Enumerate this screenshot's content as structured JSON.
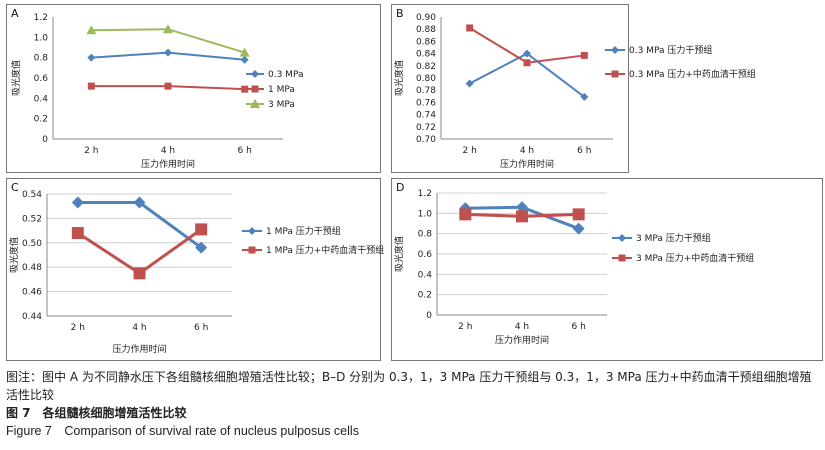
{
  "colors": {
    "blue": "#4f81bd",
    "red": "#c0504d",
    "green": "#9bbb59"
  },
  "chart_data": [
    {
      "letter": "A",
      "type": "line",
      "categories": [
        "2 h",
        "4 h",
        "6 h"
      ],
      "xlabel": "压力作用时间",
      "ylabel": "吸光度值",
      "ylim": [
        0,
        1.2
      ],
      "yticks": [
        "0",
        "0.2",
        "0.4",
        "0.6",
        "0.8",
        "1.0",
        "1.2"
      ],
      "grid": false,
      "legend_position": "right",
      "series": [
        {
          "name": "0.3 MPa",
          "values": [
            0.8,
            0.85,
            0.78
          ],
          "color": "#4f81bd",
          "marker": "diamond"
        },
        {
          "name": "1 MPa",
          "values": [
            0.52,
            0.52,
            0.49
          ],
          "color": "#c0504d",
          "marker": "square"
        },
        {
          "name": "3 MPa",
          "values": [
            1.07,
            1.08,
            0.85
          ],
          "color": "#9bbb59",
          "marker": "triangle"
        }
      ]
    },
    {
      "letter": "B",
      "type": "line",
      "categories": [
        "2 h",
        "4 h",
        "6 h"
      ],
      "xlabel": "压力作用时间",
      "ylabel": "吸光度值",
      "ylim": [
        0.7,
        0.9
      ],
      "yticks": [
        "0.70",
        "0.72",
        "0.74",
        "0.76",
        "0.78",
        "0.80",
        "0.82",
        "0.84",
        "0.86",
        "0.88",
        "0.90"
      ],
      "grid": false,
      "legend_position": "right",
      "series": [
        {
          "name": "0.3 MPa 压力干预组",
          "values": [
            0.791,
            0.84,
            0.769
          ],
          "color": "#4f81bd",
          "marker": "diamond"
        },
        {
          "name": "0.3 MPa 压力+中药血清干预组",
          "values": [
            0.882,
            0.825,
            0.837
          ],
          "color": "#c0504d",
          "marker": "square"
        }
      ]
    },
    {
      "letter": "C",
      "type": "line",
      "categories": [
        "2 h",
        "4 h",
        "6 h"
      ],
      "xlabel": "压力作用时间",
      "ylabel": "吸光度值",
      "ylim": [
        0.44,
        0.54
      ],
      "yticks": [
        "0.44",
        "0.46",
        "0.48",
        "0.50",
        "0.52",
        "0.54"
      ],
      "grid": true,
      "legend_position": "right",
      "series": [
        {
          "name": "1 MPa 压力干预组",
          "values": [
            0.533,
            0.533,
            0.496
          ],
          "color": "#4f81bd",
          "marker": "diamond"
        },
        {
          "name": "1 MPa 压力+中药血清干预组",
          "values": [
            0.508,
            0.475,
            0.511
          ],
          "color": "#c0504d",
          "marker": "square"
        }
      ]
    },
    {
      "letter": "D",
      "type": "line",
      "categories": [
        "2 h",
        "4 h",
        "6 h"
      ],
      "xlabel": "压力作用时间",
      "ylabel": "吸光度值",
      "ylim": [
        0,
        1.2
      ],
      "yticks": [
        "0",
        "0.2",
        "0.4",
        "0.6",
        "0.8",
        "1.0",
        "1.2"
      ],
      "grid": true,
      "legend_position": "right",
      "series": [
        {
          "name": "3 MPa 压力干预组",
          "values": [
            1.05,
            1.06,
            0.85
          ],
          "color": "#4f81bd",
          "marker": "diamond"
        },
        {
          "name": "3 MPa 压力+中药血清干预组",
          "values": [
            0.99,
            0.97,
            0.99
          ],
          "color": "#c0504d",
          "marker": "square"
        }
      ]
    }
  ],
  "caption": {
    "note": "图注：图中 A 为不同静水压下各组髓核细胞增殖活性比较；B–D 分别为 0.3，1，3 MPa 压力干预组与 0.3，1，3 MPa 压力+中药血清干预组细胞增殖活性比较",
    "cn_title": "图 7　各组髓核细胞增殖活性比较",
    "en_title": "Figure 7　Comparison of survival rate of nucleus pulposus cells"
  }
}
